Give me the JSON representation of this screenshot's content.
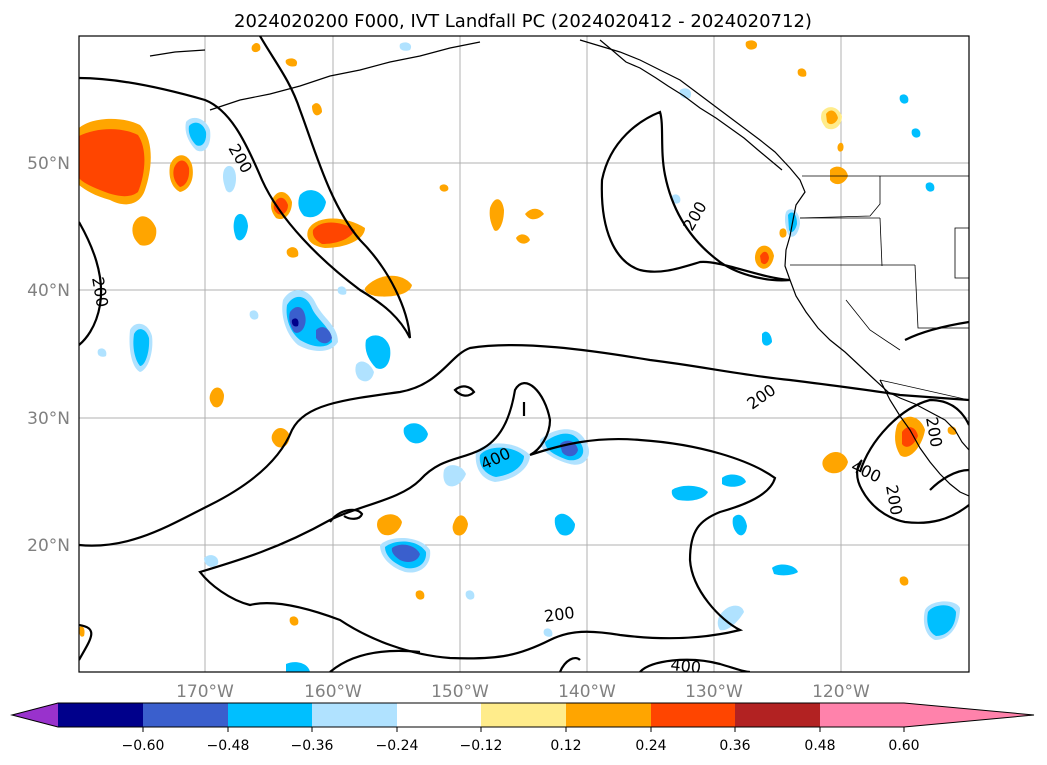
{
  "title": "2024020200 F000, IVT Landfall PC (2024020412 - 2024020712)",
  "lat_labels": [
    "50°N",
    "40°N",
    "30°N",
    "20°N"
  ],
  "lon_labels": [
    "170°W",
    "160°W",
    "150°W",
    "140°W",
    "130°W",
    "120°W"
  ],
  "contour_labels": [
    "200",
    "200",
    "200",
    "200",
    "200",
    "200",
    "400",
    "400",
    "400",
    "200"
  ],
  "colorbar": {
    "ticks": [
      "−0.60",
      "−0.48",
      "−0.36",
      "−0.24",
      "−0.12",
      "0.12",
      "0.24",
      "0.36",
      "0.48",
      "0.60"
    ],
    "colors": [
      "#9932cc",
      "#00008b",
      "#3a5fcd",
      "#00bfff",
      "#b0e2ff",
      "#ffffff",
      "#ffec8b",
      "#ffa500",
      "#ff4500",
      "#b22222",
      "#ff82ab"
    ]
  }
}
